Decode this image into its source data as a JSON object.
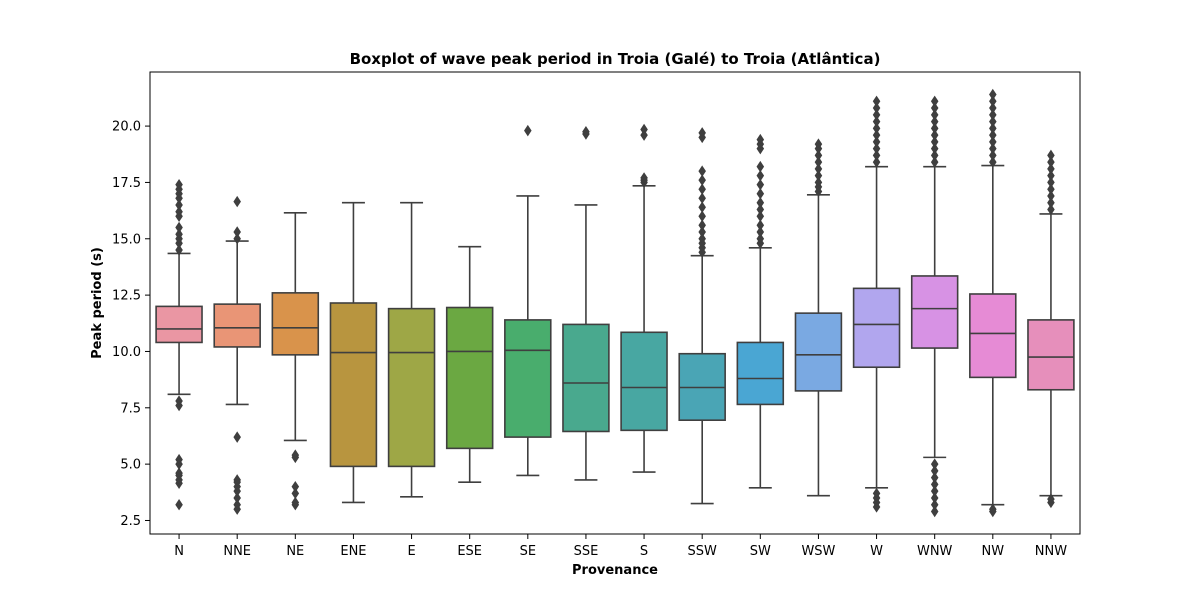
{
  "chart_data": {
    "type": "boxplot",
    "title": "Boxplot of wave peak period in Troia (Galé) to Troia (Atlântica)",
    "xlabel": "Provenance",
    "ylabel": "Peak period (s)",
    "ylim": [
      1.9,
      22.4
    ],
    "yticks": [
      2.5,
      5.0,
      7.5,
      10.0,
      12.5,
      15.0,
      17.5,
      20.0
    ],
    "ytick_labels": [
      "2.5",
      "5.0",
      "7.5",
      "10.0",
      "12.5",
      "15.0",
      "17.5",
      "20.0"
    ],
    "grid": false,
    "categories": [
      "N",
      "NNE",
      "NE",
      "ENE",
      "E",
      "ESE",
      "SE",
      "SSE",
      "S",
      "SSW",
      "SW",
      "WSW",
      "W",
      "WNW",
      "NW",
      "NNW"
    ],
    "boxes": [
      {
        "category": "N",
        "color": "#ea96a3",
        "whisker_low": 8.1,
        "q1": 10.4,
        "median": 11.0,
        "q3": 12.0,
        "whisker_high": 14.35,
        "outliers": [
          3.2,
          4.15,
          4.3,
          4.5,
          4.6,
          5.0,
          5.2,
          7.6,
          7.8,
          14.5,
          14.8,
          15.0,
          15.2,
          15.5,
          16.0,
          16.2,
          16.5,
          16.8,
          17.0,
          17.2,
          17.4
        ]
      },
      {
        "category": "NNE",
        "color": "#e99576",
        "whisker_low": 7.65,
        "q1": 10.2,
        "median": 11.05,
        "q3": 12.1,
        "whisker_high": 14.9,
        "outliers": [
          3.0,
          3.2,
          3.5,
          3.8,
          4.0,
          4.2,
          4.3,
          6.2,
          15.0,
          15.3,
          16.65
        ]
      },
      {
        "category": "NE",
        "color": "#d9934b",
        "whisker_low": 6.05,
        "q1": 9.85,
        "median": 11.05,
        "q3": 12.6,
        "whisker_high": 16.15,
        "outliers": [
          3.2,
          3.3,
          3.7,
          4.0,
          5.3,
          5.4
        ]
      },
      {
        "category": "ENE",
        "color": "#b8953f",
        "whisker_low": 3.3,
        "q1": 4.9,
        "median": 9.95,
        "q3": 12.15,
        "whisker_high": 16.6,
        "outliers": []
      },
      {
        "category": "E",
        "color": "#9ea746",
        "whisker_low": 3.55,
        "q1": 4.9,
        "median": 9.95,
        "q3": 11.9,
        "whisker_high": 16.6,
        "outliers": []
      },
      {
        "category": "ESE",
        "color": "#6ba842",
        "whisker_low": 4.2,
        "q1": 5.7,
        "median": 10.0,
        "q3": 11.95,
        "whisker_high": 14.65,
        "outliers": []
      },
      {
        "category": "SE",
        "color": "#49ad6d",
        "whisker_low": 4.5,
        "q1": 6.2,
        "median": 10.05,
        "q3": 11.4,
        "whisker_high": 16.9,
        "outliers": [
          19.8
        ]
      },
      {
        "category": "SSE",
        "color": "#49a98e",
        "whisker_low": 4.3,
        "q1": 6.45,
        "median": 8.6,
        "q3": 11.2,
        "whisker_high": 16.5,
        "outliers": [
          19.65,
          19.75
        ]
      },
      {
        "category": "S",
        "color": "#48a7a2",
        "whisker_low": 4.65,
        "q1": 6.5,
        "median": 8.4,
        "q3": 10.85,
        "whisker_high": 17.35,
        "outliers": [
          17.5,
          17.6,
          17.7,
          19.6,
          19.85
        ]
      },
      {
        "category": "SSW",
        "color": "#4aa5b5",
        "whisker_low": 3.25,
        "q1": 6.95,
        "median": 8.4,
        "q3": 9.9,
        "whisker_high": 14.25,
        "outliers": [
          14.4,
          14.6,
          14.8,
          15.0,
          15.3,
          15.6,
          16.0,
          16.4,
          16.8,
          17.2,
          17.6,
          18.0,
          19.5,
          19.7
        ]
      },
      {
        "category": "SW",
        "color": "#4aa6d3",
        "whisker_low": 3.95,
        "q1": 7.65,
        "median": 8.8,
        "q3": 10.4,
        "whisker_high": 14.6,
        "outliers": [
          14.8,
          15.0,
          15.3,
          15.6,
          16.0,
          16.3,
          16.6,
          17.0,
          17.4,
          17.8,
          18.2,
          19.0,
          19.2,
          19.4
        ]
      },
      {
        "category": "WSW",
        "color": "#7aa9e2",
        "whisker_low": 3.6,
        "q1": 8.25,
        "median": 9.85,
        "q3": 11.7,
        "whisker_high": 16.95,
        "outliers": [
          17.1,
          17.3,
          17.5,
          17.8,
          18.1,
          18.4,
          18.7,
          19.0,
          19.2
        ]
      },
      {
        "category": "W",
        "color": "#b1a6ee",
        "whisker_low": 3.95,
        "q1": 9.3,
        "median": 11.2,
        "q3": 12.8,
        "whisker_high": 18.2,
        "outliers": [
          3.1,
          3.3,
          3.5,
          3.7,
          18.4,
          18.7,
          19.0,
          19.3,
          19.6,
          19.9,
          20.2,
          20.5,
          20.8,
          21.1
        ]
      },
      {
        "category": "WNW",
        "color": "#d792e4",
        "whisker_low": 5.3,
        "q1": 10.15,
        "median": 11.9,
        "q3": 13.35,
        "whisker_high": 18.2,
        "outliers": [
          2.9,
          3.2,
          3.5,
          3.8,
          4.1,
          4.4,
          4.7,
          5.0,
          18.4,
          18.7,
          19.0,
          19.3,
          19.6,
          19.9,
          20.2,
          20.5,
          20.8,
          21.1
        ]
      },
      {
        "category": "NW",
        "color": "#e68bd5",
        "whisker_low": 3.2,
        "q1": 8.85,
        "median": 10.8,
        "q3": 12.55,
        "whisker_high": 18.25,
        "outliers": [
          2.9,
          3.0,
          18.4,
          18.7,
          19.0,
          19.3,
          19.6,
          19.9,
          20.2,
          20.5,
          20.8,
          21.1,
          21.4
        ]
      },
      {
        "category": "NNW",
        "color": "#e68fbb",
        "whisker_low": 3.6,
        "q1": 8.3,
        "median": 9.75,
        "q3": 11.4,
        "whisker_high": 16.1,
        "outliers": [
          3.3,
          3.45,
          16.3,
          16.6,
          16.9,
          17.2,
          17.5,
          17.8,
          18.1,
          18.4,
          18.7
        ]
      }
    ]
  }
}
